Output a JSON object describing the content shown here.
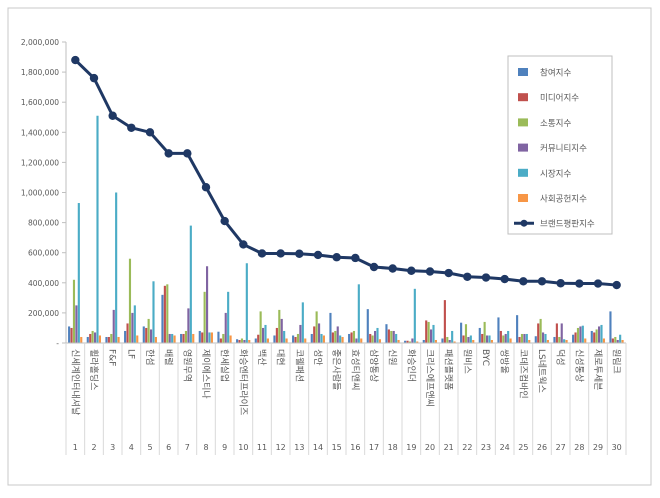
{
  "colors": {
    "axis": "#bfbfbf",
    "grid": "#d9d9d9",
    "text": "#595959",
    "frame": "#c8c8c8"
  },
  "chart_data": {
    "type": "bar",
    "title": "",
    "xlabel": "",
    "ylabel": "",
    "ylim": [
      0,
      2000000
    ],
    "yticks": [
      0,
      200000,
      400000,
      600000,
      800000,
      1000000,
      1200000,
      1400000,
      1600000,
      1800000,
      2000000
    ],
    "ytick_labels": [
      "-",
      "200,000",
      "400,000",
      "600,000",
      "800,000",
      "1,000,000",
      "1,200,000",
      "1,400,000",
      "1,600,000",
      "1,800,000",
      "2,000,000"
    ],
    "grid": false,
    "legend_position": "right",
    "categories": [
      "신세계인터내셔날",
      "휠라홀딩스",
      "F&F",
      "LF",
      "한섬",
      "배럴",
      "영원무역",
      "제이에스티나",
      "한세실업",
      "화승엔터프라이즈",
      "백산",
      "대현",
      "코웰패션",
      "성안",
      "좋은사람들",
      "효성티앤씨",
      "삼양통상",
      "신원",
      "화승인더",
      "크리스에프앤씨",
      "패션플랫폼",
      "원비스",
      "BYC",
      "쌍방울",
      "코데즈컴바인",
      "LS네트웍스",
      "덕성",
      "신성통상",
      "제로투세븐",
      "원림크"
    ],
    "category_numbers": [
      "1",
      "2",
      "3",
      "4",
      "5",
      "6",
      "7",
      "8",
      "9",
      "10",
      "11",
      "12",
      "13",
      "14",
      "15",
      "16",
      "17",
      "18",
      "19",
      "20",
      "21",
      "22",
      "23",
      "24",
      "25",
      "26",
      "27",
      "28",
      "29",
      "30"
    ],
    "series": [
      {
        "name": "참여지수",
        "type": "bar",
        "color": "#4f81bd",
        "values": [
          110000,
          40000,
          40000,
          80000,
          110000,
          320000,
          60000,
          80000,
          75000,
          25000,
          30000,
          50000,
          50000,
          60000,
          200000,
          60000,
          225000,
          125000,
          15000,
          20000,
          30000,
          135000,
          100000,
          170000,
          185000,
          45000,
          40000,
          55000,
          80000,
          210000
        ]
      },
      {
        "name": "미디어지수",
        "type": "bar",
        "color": "#c0504d",
        "values": [
          100000,
          60000,
          40000,
          130000,
          100000,
          380000,
          60000,
          70000,
          30000,
          20000,
          55000,
          100000,
          40000,
          110000,
          70000,
          70000,
          60000,
          90000,
          15000,
          150000,
          285000,
          50000,
          60000,
          80000,
          40000,
          130000,
          130000,
          70000,
          70000,
          30000
        ]
      },
      {
        "name": "소통지수",
        "type": "bar",
        "color": "#9bbb59",
        "values": [
          420000,
          80000,
          60000,
          560000,
          160000,
          390000,
          80000,
          340000,
          60000,
          30000,
          210000,
          220000,
          60000,
          210000,
          80000,
          80000,
          50000,
          80000,
          10000,
          140000,
          40000,
          125000,
          140000,
          50000,
          60000,
          160000,
          40000,
          100000,
          90000,
          40000
        ]
      },
      {
        "name": "커뮤니티지수",
        "type": "bar",
        "color": "#8064a2",
        "values": [
          250000,
          70000,
          220000,
          200000,
          90000,
          60000,
          230000,
          510000,
          200000,
          20000,
          100000,
          160000,
          120000,
          130000,
          110000,
          30000,
          80000,
          80000,
          30000,
          90000,
          20000,
          40000,
          50000,
          60000,
          60000,
          70000,
          130000,
          110000,
          110000,
          20000
        ]
      },
      {
        "name": "시장지수",
        "type": "bar",
        "color": "#4bacc6",
        "values": [
          930000,
          1510000,
          1000000,
          250000,
          410000,
          60000,
          780000,
          70000,
          340000,
          530000,
          120000,
          80000,
          270000,
          60000,
          50000,
          390000,
          100000,
          60000,
          360000,
          120000,
          80000,
          50000,
          50000,
          80000,
          60000,
          60000,
          25000,
          115000,
          120000,
          55000
        ]
      },
      {
        "name": "사회공헌지수",
        "type": "bar",
        "color": "#f79646",
        "values": [
          40000,
          50000,
          40000,
          50000,
          40000,
          50000,
          60000,
          70000,
          50000,
          20000,
          30000,
          30000,
          30000,
          50000,
          40000,
          30000,
          25000,
          20000,
          10000,
          20000,
          10000,
          20000,
          20000,
          30000,
          20000,
          20000,
          20000,
          30000,
          30000,
          20000
        ]
      },
      {
        "name": "브랜드평판지수",
        "type": "line",
        "color": "#1f3864",
        "values": [
          1880000,
          1760000,
          1510000,
          1430000,
          1400000,
          1260000,
          1260000,
          1035000,
          810000,
          655000,
          595000,
          595000,
          593000,
          585000,
          570000,
          565000,
          505000,
          495000,
          480000,
          475000,
          465000,
          440000,
          435000,
          425000,
          410000,
          410000,
          397000,
          395000,
          395000,
          385000
        ]
      }
    ]
  }
}
